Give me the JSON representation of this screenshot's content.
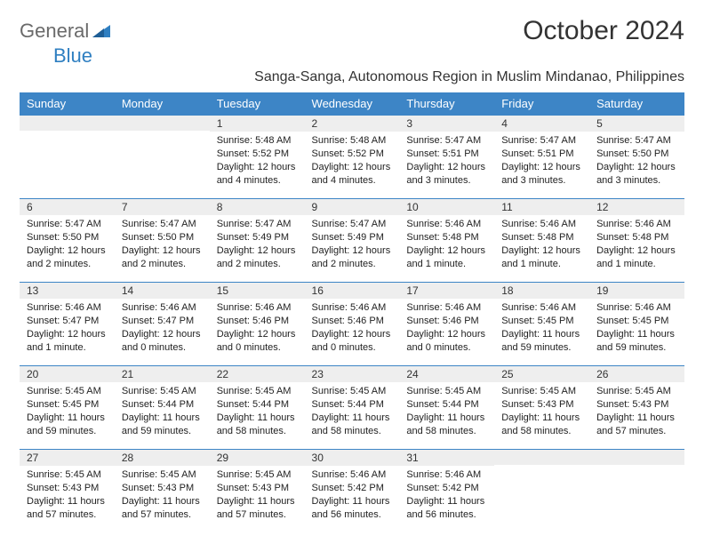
{
  "logo": {
    "text1": "General",
    "text2": "Blue"
  },
  "title": "October 2024",
  "subtitle": "Sanga-Sanga, Autonomous Region in Muslim Mindanao, Philippines",
  "colors": {
    "header_bg": "#3d85c6",
    "header_text": "#ffffff",
    "daynum_bg": "#eeeeee",
    "border": "#3d85c6",
    "logo_gray": "#6a6a6a",
    "logo_blue": "#2f7fc1",
    "text": "#222222",
    "background": "#ffffff"
  },
  "day_headers": [
    "Sunday",
    "Monday",
    "Tuesday",
    "Wednesday",
    "Thursday",
    "Friday",
    "Saturday"
  ],
  "weeks": [
    [
      {
        "n": "",
        "sr": "",
        "ss": "",
        "dl": ""
      },
      {
        "n": "",
        "sr": "",
        "ss": "",
        "dl": ""
      },
      {
        "n": "1",
        "sr": "Sunrise: 5:48 AM",
        "ss": "Sunset: 5:52 PM",
        "dl": "Daylight: 12 hours and 4 minutes."
      },
      {
        "n": "2",
        "sr": "Sunrise: 5:48 AM",
        "ss": "Sunset: 5:52 PM",
        "dl": "Daylight: 12 hours and 4 minutes."
      },
      {
        "n": "3",
        "sr": "Sunrise: 5:47 AM",
        "ss": "Sunset: 5:51 PM",
        "dl": "Daylight: 12 hours and 3 minutes."
      },
      {
        "n": "4",
        "sr": "Sunrise: 5:47 AM",
        "ss": "Sunset: 5:51 PM",
        "dl": "Daylight: 12 hours and 3 minutes."
      },
      {
        "n": "5",
        "sr": "Sunrise: 5:47 AM",
        "ss": "Sunset: 5:50 PM",
        "dl": "Daylight: 12 hours and 3 minutes."
      }
    ],
    [
      {
        "n": "6",
        "sr": "Sunrise: 5:47 AM",
        "ss": "Sunset: 5:50 PM",
        "dl": "Daylight: 12 hours and 2 minutes."
      },
      {
        "n": "7",
        "sr": "Sunrise: 5:47 AM",
        "ss": "Sunset: 5:50 PM",
        "dl": "Daylight: 12 hours and 2 minutes."
      },
      {
        "n": "8",
        "sr": "Sunrise: 5:47 AM",
        "ss": "Sunset: 5:49 PM",
        "dl": "Daylight: 12 hours and 2 minutes."
      },
      {
        "n": "9",
        "sr": "Sunrise: 5:47 AM",
        "ss": "Sunset: 5:49 PM",
        "dl": "Daylight: 12 hours and 2 minutes."
      },
      {
        "n": "10",
        "sr": "Sunrise: 5:46 AM",
        "ss": "Sunset: 5:48 PM",
        "dl": "Daylight: 12 hours and 1 minute."
      },
      {
        "n": "11",
        "sr": "Sunrise: 5:46 AM",
        "ss": "Sunset: 5:48 PM",
        "dl": "Daylight: 12 hours and 1 minute."
      },
      {
        "n": "12",
        "sr": "Sunrise: 5:46 AM",
        "ss": "Sunset: 5:48 PM",
        "dl": "Daylight: 12 hours and 1 minute."
      }
    ],
    [
      {
        "n": "13",
        "sr": "Sunrise: 5:46 AM",
        "ss": "Sunset: 5:47 PM",
        "dl": "Daylight: 12 hours and 1 minute."
      },
      {
        "n": "14",
        "sr": "Sunrise: 5:46 AM",
        "ss": "Sunset: 5:47 PM",
        "dl": "Daylight: 12 hours and 0 minutes."
      },
      {
        "n": "15",
        "sr": "Sunrise: 5:46 AM",
        "ss": "Sunset: 5:46 PM",
        "dl": "Daylight: 12 hours and 0 minutes."
      },
      {
        "n": "16",
        "sr": "Sunrise: 5:46 AM",
        "ss": "Sunset: 5:46 PM",
        "dl": "Daylight: 12 hours and 0 minutes."
      },
      {
        "n": "17",
        "sr": "Sunrise: 5:46 AM",
        "ss": "Sunset: 5:46 PM",
        "dl": "Daylight: 12 hours and 0 minutes."
      },
      {
        "n": "18",
        "sr": "Sunrise: 5:46 AM",
        "ss": "Sunset: 5:45 PM",
        "dl": "Daylight: 11 hours and 59 minutes."
      },
      {
        "n": "19",
        "sr": "Sunrise: 5:46 AM",
        "ss": "Sunset: 5:45 PM",
        "dl": "Daylight: 11 hours and 59 minutes."
      }
    ],
    [
      {
        "n": "20",
        "sr": "Sunrise: 5:45 AM",
        "ss": "Sunset: 5:45 PM",
        "dl": "Daylight: 11 hours and 59 minutes."
      },
      {
        "n": "21",
        "sr": "Sunrise: 5:45 AM",
        "ss": "Sunset: 5:44 PM",
        "dl": "Daylight: 11 hours and 59 minutes."
      },
      {
        "n": "22",
        "sr": "Sunrise: 5:45 AM",
        "ss": "Sunset: 5:44 PM",
        "dl": "Daylight: 11 hours and 58 minutes."
      },
      {
        "n": "23",
        "sr": "Sunrise: 5:45 AM",
        "ss": "Sunset: 5:44 PM",
        "dl": "Daylight: 11 hours and 58 minutes."
      },
      {
        "n": "24",
        "sr": "Sunrise: 5:45 AM",
        "ss": "Sunset: 5:44 PM",
        "dl": "Daylight: 11 hours and 58 minutes."
      },
      {
        "n": "25",
        "sr": "Sunrise: 5:45 AM",
        "ss": "Sunset: 5:43 PM",
        "dl": "Daylight: 11 hours and 58 minutes."
      },
      {
        "n": "26",
        "sr": "Sunrise: 5:45 AM",
        "ss": "Sunset: 5:43 PM",
        "dl": "Daylight: 11 hours and 57 minutes."
      }
    ],
    [
      {
        "n": "27",
        "sr": "Sunrise: 5:45 AM",
        "ss": "Sunset: 5:43 PM",
        "dl": "Daylight: 11 hours and 57 minutes."
      },
      {
        "n": "28",
        "sr": "Sunrise: 5:45 AM",
        "ss": "Sunset: 5:43 PM",
        "dl": "Daylight: 11 hours and 57 minutes."
      },
      {
        "n": "29",
        "sr": "Sunrise: 5:45 AM",
        "ss": "Sunset: 5:43 PM",
        "dl": "Daylight: 11 hours and 57 minutes."
      },
      {
        "n": "30",
        "sr": "Sunrise: 5:46 AM",
        "ss": "Sunset: 5:42 PM",
        "dl": "Daylight: 11 hours and 56 minutes."
      },
      {
        "n": "31",
        "sr": "Sunrise: 5:46 AM",
        "ss": "Sunset: 5:42 PM",
        "dl": "Daylight: 11 hours and 56 minutes."
      },
      {
        "n": "",
        "sr": "",
        "ss": "",
        "dl": ""
      },
      {
        "n": "",
        "sr": "",
        "ss": "",
        "dl": ""
      }
    ]
  ]
}
